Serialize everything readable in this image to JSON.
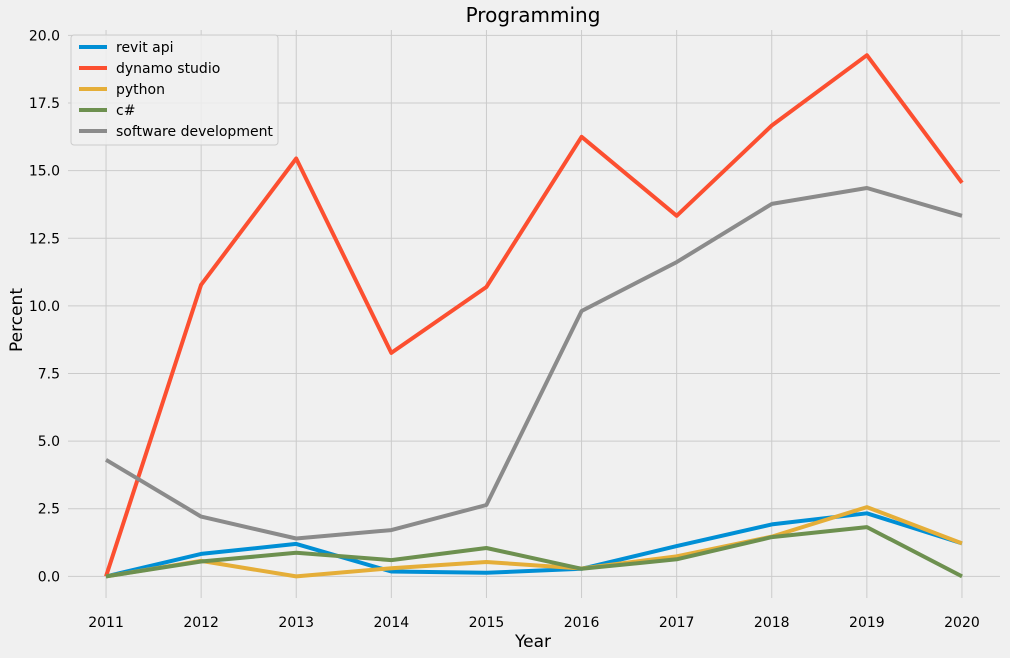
{
  "chart_data": {
    "type": "line",
    "title": "Programming",
    "xlabel": "Year",
    "ylabel": "Percent",
    "x": [
      2011,
      2012,
      2013,
      2014,
      2015,
      2016,
      2017,
      2018,
      2019,
      2020
    ],
    "xticks": [
      "2011",
      "2012",
      "2013",
      "2014",
      "2015",
      "2016",
      "2017",
      "2018",
      "2019",
      "2020"
    ],
    "yticks": [
      "0.0",
      "2.5",
      "5.0",
      "7.5",
      "10.0",
      "12.5",
      "15.0",
      "17.5",
      "20.0"
    ],
    "ylim": [
      -0.8,
      20.2
    ],
    "grid": true,
    "legend_position": "top-left",
    "series": [
      {
        "name": "revit api",
        "color": "#008fd5",
        "values": [
          0.0,
          0.83,
          1.2,
          0.18,
          0.13,
          0.28,
          1.12,
          1.92,
          2.33,
          1.22
        ]
      },
      {
        "name": "dynamo studio",
        "color": "#fc4f30",
        "values": [
          0.0,
          10.78,
          15.45,
          8.26,
          10.7,
          16.25,
          13.33,
          16.67,
          19.27,
          14.55
        ]
      },
      {
        "name": "python",
        "color": "#e5ae38",
        "values": [
          0.0,
          0.57,
          0.0,
          0.3,
          0.53,
          0.29,
          0.74,
          1.47,
          2.56,
          1.22
        ]
      },
      {
        "name": "c#",
        "color": "#6d904f",
        "values": [
          0.0,
          0.55,
          0.87,
          0.6,
          1.05,
          0.28,
          0.63,
          1.45,
          1.82,
          0.0
        ]
      },
      {
        "name": "software development",
        "color": "#8b8b8b",
        "values": [
          4.31,
          2.21,
          1.4,
          1.71,
          2.64,
          9.81,
          11.62,
          13.77,
          14.36,
          13.33
        ]
      }
    ]
  }
}
